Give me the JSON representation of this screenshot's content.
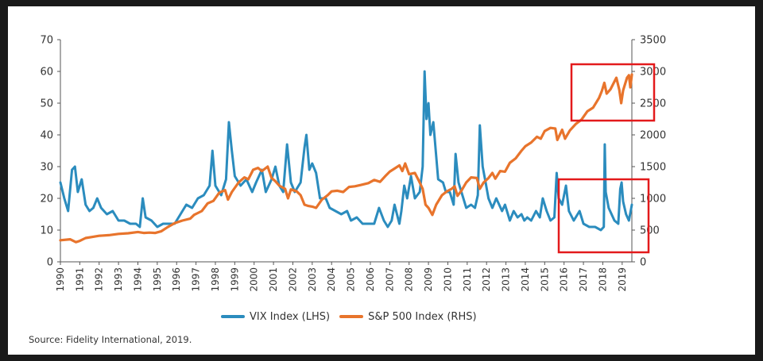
{
  "chart_data": {
    "type": "line",
    "title": "",
    "left_axis": {
      "ylim": [
        0,
        70
      ],
      "ticks": [
        "0",
        "10",
        "20",
        "30",
        "40",
        "50",
        "60",
        "70"
      ]
    },
    "right_axis": {
      "ylim": [
        0,
        3500
      ],
      "ticks": [
        "0",
        "500",
        "1000",
        "1500",
        "2000",
        "2500",
        "3000",
        "3500"
      ]
    },
    "xlim": [
      1990,
      2019.5
    ],
    "x_ticks": [
      "1990",
      "1991",
      "1992",
      "1993",
      "1994",
      "1995",
      "1996",
      "1997",
      "1998",
      "1999",
      "2000",
      "2001",
      "2002",
      "2003",
      "2004",
      "2005",
      "2006",
      "2007",
      "2008",
      "2009",
      "2010",
      "2011",
      "2012",
      "2013",
      "2014",
      "2015",
      "2016",
      "2017",
      "2018",
      "2019"
    ],
    "grid": false,
    "legend_position": "bottom",
    "series": [
      {
        "name": "VIX Index (LHS)",
        "axis": "left",
        "color": "#2b8cbe",
        "points": [
          [
            1990.0,
            25
          ],
          [
            1990.2,
            20
          ],
          [
            1990.4,
            16
          ],
          [
            1990.6,
            29
          ],
          [
            1990.75,
            30
          ],
          [
            1990.9,
            22
          ],
          [
            1991.1,
            26
          ],
          [
            1991.3,
            18
          ],
          [
            1991.5,
            16
          ],
          [
            1991.7,
            17
          ],
          [
            1991.9,
            20
          ],
          [
            1992.1,
            17
          ],
          [
            1992.4,
            15
          ],
          [
            1992.7,
            16
          ],
          [
            1993.0,
            13
          ],
          [
            1993.3,
            13
          ],
          [
            1993.6,
            12
          ],
          [
            1993.9,
            12
          ],
          [
            1994.1,
            11
          ],
          [
            1994.25,
            20
          ],
          [
            1994.4,
            14
          ],
          [
            1994.7,
            13
          ],
          [
            1995.0,
            11
          ],
          [
            1995.3,
            12
          ],
          [
            1995.6,
            12
          ],
          [
            1995.9,
            12
          ],
          [
            1996.2,
            15
          ],
          [
            1996.5,
            18
          ],
          [
            1996.8,
            17
          ],
          [
            1997.1,
            20
          ],
          [
            1997.4,
            21
          ],
          [
            1997.7,
            24
          ],
          [
            1997.85,
            35
          ],
          [
            1998.0,
            24
          ],
          [
            1998.3,
            21
          ],
          [
            1998.55,
            26
          ],
          [
            1998.7,
            44
          ],
          [
            1998.85,
            35
          ],
          [
            1999.0,
            27
          ],
          [
            1999.3,
            24
          ],
          [
            1999.6,
            26
          ],
          [
            1999.9,
            22
          ],
          [
            2000.1,
            25
          ],
          [
            2000.4,
            29
          ],
          [
            2000.6,
            22
          ],
          [
            2000.9,
            26
          ],
          [
            2001.1,
            30
          ],
          [
            2001.3,
            24
          ],
          [
            2001.5,
            22
          ],
          [
            2001.7,
            37
          ],
          [
            2001.9,
            25
          ],
          [
            2002.1,
            22
          ],
          [
            2002.4,
            25
          ],
          [
            2002.6,
            36
          ],
          [
            2002.7,
            40
          ],
          [
            2002.85,
            29
          ],
          [
            2003.0,
            31
          ],
          [
            2003.2,
            28
          ],
          [
            2003.4,
            20
          ],
          [
            2003.7,
            20
          ],
          [
            2003.9,
            17
          ],
          [
            2004.2,
            16
          ],
          [
            2004.5,
            15
          ],
          [
            2004.8,
            16
          ],
          [
            2005.0,
            13
          ],
          [
            2005.3,
            14
          ],
          [
            2005.6,
            12
          ],
          [
            2005.9,
            12
          ],
          [
            2006.2,
            12
          ],
          [
            2006.45,
            17
          ],
          [
            2006.7,
            13
          ],
          [
            2006.9,
            11
          ],
          [
            2007.1,
            13
          ],
          [
            2007.25,
            18
          ],
          [
            2007.5,
            12
          ],
          [
            2007.6,
            16
          ],
          [
            2007.75,
            24
          ],
          [
            2007.9,
            20
          ],
          [
            2008.1,
            27
          ],
          [
            2008.3,
            20
          ],
          [
            2008.55,
            22
          ],
          [
            2008.7,
            30
          ],
          [
            2008.8,
            60
          ],
          [
            2008.9,
            45
          ],
          [
            2009.0,
            50
          ],
          [
            2009.1,
            40
          ],
          [
            2009.25,
            44
          ],
          [
            2009.5,
            26
          ],
          [
            2009.75,
            25
          ],
          [
            2009.9,
            22
          ],
          [
            2010.1,
            22
          ],
          [
            2010.3,
            18
          ],
          [
            2010.4,
            34
          ],
          [
            2010.55,
            25
          ],
          [
            2010.8,
            20
          ],
          [
            2010.95,
            17
          ],
          [
            2011.2,
            18
          ],
          [
            2011.4,
            17
          ],
          [
            2011.55,
            21
          ],
          [
            2011.65,
            43
          ],
          [
            2011.8,
            30
          ],
          [
            2011.95,
            25
          ],
          [
            2012.1,
            20
          ],
          [
            2012.3,
            17
          ],
          [
            2012.5,
            20
          ],
          [
            2012.8,
            16
          ],
          [
            2012.95,
            18
          ],
          [
            2013.2,
            13
          ],
          [
            2013.4,
            16
          ],
          [
            2013.6,
            14
          ],
          [
            2013.8,
            15
          ],
          [
            2013.95,
            13
          ],
          [
            2014.1,
            14
          ],
          [
            2014.3,
            13
          ],
          [
            2014.55,
            16
          ],
          [
            2014.75,
            14
          ],
          [
            2014.9,
            20
          ],
          [
            2015.1,
            16
          ],
          [
            2015.3,
            13
          ],
          [
            2015.5,
            14
          ],
          [
            2015.62,
            28
          ],
          [
            2015.72,
            20
          ],
          [
            2015.9,
            18
          ],
          [
            2016.1,
            24
          ],
          [
            2016.25,
            16
          ],
          [
            2016.5,
            13
          ],
          [
            2016.8,
            16
          ],
          [
            2017.0,
            12
          ],
          [
            2017.3,
            11
          ],
          [
            2017.6,
            11
          ],
          [
            2017.9,
            10
          ],
          [
            2018.05,
            11
          ],
          [
            2018.1,
            37
          ],
          [
            2018.15,
            22
          ],
          [
            2018.3,
            17
          ],
          [
            2018.6,
            13
          ],
          [
            2018.8,
            12
          ],
          [
            2018.9,
            23
          ],
          [
            2018.97,
            25
          ],
          [
            2019.05,
            19
          ],
          [
            2019.2,
            15
          ],
          [
            2019.35,
            13
          ],
          [
            2019.5,
            18
          ]
        ]
      },
      {
        "name": "S&P 500 Index (RHS)",
        "axis": "right",
        "color": "#e8742c",
        "points": [
          [
            1990.0,
            340
          ],
          [
            1990.5,
            355
          ],
          [
            1990.8,
            310
          ],
          [
            1991.0,
            330
          ],
          [
            1991.3,
            375
          ],
          [
            1991.6,
            390
          ],
          [
            1992.0,
            410
          ],
          [
            1992.5,
            420
          ],
          [
            1993.0,
            440
          ],
          [
            1993.5,
            450
          ],
          [
            1994.0,
            470
          ],
          [
            1994.3,
            455
          ],
          [
            1994.6,
            460
          ],
          [
            1994.9,
            455
          ],
          [
            1995.2,
            480
          ],
          [
            1995.5,
            540
          ],
          [
            1995.9,
            610
          ],
          [
            1996.3,
            650
          ],
          [
            1996.7,
            680
          ],
          [
            1996.9,
            740
          ],
          [
            1997.3,
            800
          ],
          [
            1997.6,
            920
          ],
          [
            1997.9,
            960
          ],
          [
            1998.2,
            1090
          ],
          [
            1998.5,
            1130
          ],
          [
            1998.65,
            980
          ],
          [
            1998.85,
            1100
          ],
          [
            1999.2,
            1250
          ],
          [
            1999.5,
            1330
          ],
          [
            1999.7,
            1300
          ],
          [
            1999.95,
            1450
          ],
          [
            2000.2,
            1480
          ],
          [
            2000.4,
            1430
          ],
          [
            2000.7,
            1500
          ],
          [
            2000.9,
            1320
          ],
          [
            2001.1,
            1270
          ],
          [
            2001.3,
            1200
          ],
          [
            2001.6,
            1150
          ],
          [
            2001.75,
            1000
          ],
          [
            2001.9,
            1140
          ],
          [
            2002.2,
            1110
          ],
          [
            2002.4,
            1050
          ],
          [
            2002.6,
            900
          ],
          [
            2002.8,
            880
          ],
          [
            2003.0,
            870
          ],
          [
            2003.2,
            850
          ],
          [
            2003.5,
            980
          ],
          [
            2003.8,
            1050
          ],
          [
            2004.0,
            1110
          ],
          [
            2004.3,
            1120
          ],
          [
            2004.6,
            1100
          ],
          [
            2004.9,
            1180
          ],
          [
            2005.2,
            1190
          ],
          [
            2005.5,
            1210
          ],
          [
            2005.9,
            1240
          ],
          [
            2006.2,
            1290
          ],
          [
            2006.5,
            1260
          ],
          [
            2006.8,
            1360
          ],
          [
            2007.0,
            1420
          ],
          [
            2007.3,
            1480
          ],
          [
            2007.5,
            1520
          ],
          [
            2007.65,
            1430
          ],
          [
            2007.8,
            1550
          ],
          [
            2008.0,
            1380
          ],
          [
            2008.3,
            1400
          ],
          [
            2008.5,
            1280
          ],
          [
            2008.7,
            1150
          ],
          [
            2008.85,
            900
          ],
          [
            2009.0,
            850
          ],
          [
            2009.2,
            740
          ],
          [
            2009.4,
            900
          ],
          [
            2009.7,
            1050
          ],
          [
            2009.95,
            1110
          ],
          [
            2010.2,
            1150
          ],
          [
            2010.35,
            1190
          ],
          [
            2010.5,
            1040
          ],
          [
            2010.7,
            1120
          ],
          [
            2010.95,
            1250
          ],
          [
            2011.2,
            1330
          ],
          [
            2011.5,
            1320
          ],
          [
            2011.65,
            1150
          ],
          [
            2011.85,
            1250
          ],
          [
            2012.1,
            1320
          ],
          [
            2012.3,
            1400
          ],
          [
            2012.45,
            1310
          ],
          [
            2012.7,
            1430
          ],
          [
            2012.95,
            1420
          ],
          [
            2013.2,
            1560
          ],
          [
            2013.5,
            1630
          ],
          [
            2013.8,
            1750
          ],
          [
            2014.0,
            1820
          ],
          [
            2014.3,
            1880
          ],
          [
            2014.6,
            1970
          ],
          [
            2014.8,
            1940
          ],
          [
            2015.0,
            2060
          ],
          [
            2015.3,
            2110
          ],
          [
            2015.55,
            2100
          ],
          [
            2015.65,
            1920
          ],
          [
            2015.9,
            2080
          ],
          [
            2016.05,
            1940
          ],
          [
            2016.3,
            2070
          ],
          [
            2016.6,
            2170
          ],
          [
            2016.9,
            2240
          ],
          [
            2017.2,
            2370
          ],
          [
            2017.5,
            2430
          ],
          [
            2017.8,
            2580
          ],
          [
            2017.95,
            2690
          ],
          [
            2018.08,
            2820
          ],
          [
            2018.2,
            2650
          ],
          [
            2018.4,
            2720
          ],
          [
            2018.7,
            2900
          ],
          [
            2018.85,
            2710
          ],
          [
            2018.95,
            2500
          ],
          [
            2019.05,
            2700
          ],
          [
            2019.25,
            2900
          ],
          [
            2019.35,
            2940
          ],
          [
            2019.42,
            2750
          ],
          [
            2019.5,
            2950
          ]
        ]
      }
    ]
  },
  "legend": {
    "vix": "VIX Index (LHS)",
    "sp500": "S&P 500 Index (RHS)"
  },
  "source": "Source: Fidelity International, 2019.",
  "highlight_color": "#e31a1c"
}
